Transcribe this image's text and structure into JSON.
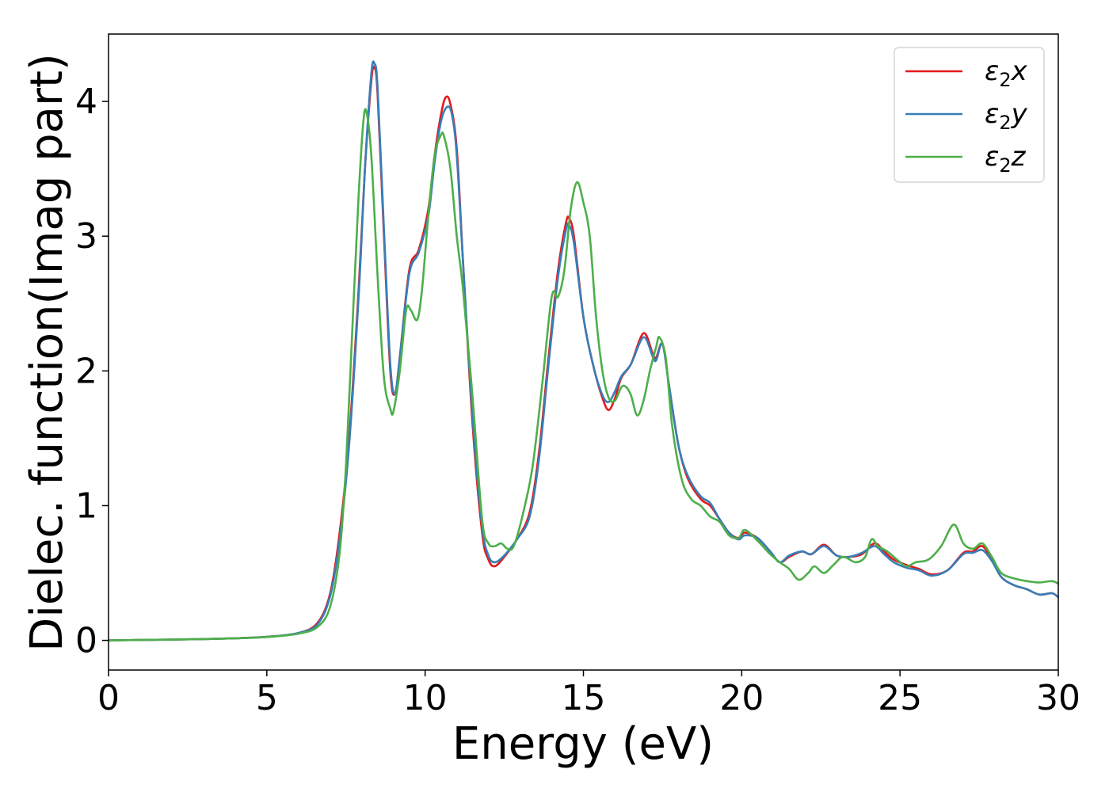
{
  "chart_data": {
    "type": "line",
    "xlabel": "Energy (eV)",
    "ylabel": "Dielec. function(Imag part)",
    "xlim": [
      0,
      30
    ],
    "ylim": [
      -0.22,
      4.5
    ],
    "xticks": [
      0,
      5,
      10,
      15,
      20,
      25,
      30
    ],
    "yticks": [
      0,
      1,
      2,
      3,
      4
    ],
    "grid": false,
    "legend_position": "top-right",
    "series": [
      {
        "name": "ε₂x",
        "legend_base": "ε",
        "legend_sub": "2",
        "legend_var": "x",
        "color": "#e41a1c",
        "points": [
          [
            0,
            0.0
          ],
          [
            1,
            0.003
          ],
          [
            2,
            0.006
          ],
          [
            3,
            0.01
          ],
          [
            4,
            0.016
          ],
          [
            5,
            0.026
          ],
          [
            6,
            0.055
          ],
          [
            6.6,
            0.13
          ],
          [
            7.0,
            0.35
          ],
          [
            7.3,
            0.8
          ],
          [
            7.6,
            1.5
          ],
          [
            7.9,
            2.6
          ],
          [
            8.1,
            3.5
          ],
          [
            8.3,
            4.15
          ],
          [
            8.4,
            4.25
          ],
          [
            8.5,
            4.05
          ],
          [
            8.7,
            3.0
          ],
          [
            8.9,
            2.0
          ],
          [
            9.05,
            1.83
          ],
          [
            9.2,
            2.1
          ],
          [
            9.5,
            2.75
          ],
          [
            9.8,
            2.9
          ],
          [
            10.1,
            3.2
          ],
          [
            10.3,
            3.6
          ],
          [
            10.5,
            3.9
          ],
          [
            10.65,
            4.03
          ],
          [
            10.8,
            3.98
          ],
          [
            11.0,
            3.65
          ],
          [
            11.2,
            2.8
          ],
          [
            11.5,
            1.6
          ],
          [
            11.8,
            0.8
          ],
          [
            12.0,
            0.6
          ],
          [
            12.2,
            0.55
          ],
          [
            12.5,
            0.62
          ],
          [
            12.9,
            0.75
          ],
          [
            13.3,
            0.95
          ],
          [
            13.6,
            1.4
          ],
          [
            13.9,
            2.1
          ],
          [
            14.2,
            2.75
          ],
          [
            14.45,
            3.1
          ],
          [
            14.55,
            3.13
          ],
          [
            14.7,
            3.0
          ],
          [
            15.0,
            2.4
          ],
          [
            15.3,
            2.05
          ],
          [
            15.6,
            1.8
          ],
          [
            15.8,
            1.71
          ],
          [
            16.0,
            1.8
          ],
          [
            16.2,
            1.95
          ],
          [
            16.5,
            2.05
          ],
          [
            16.9,
            2.28
          ],
          [
            17.2,
            2.12
          ],
          [
            17.3,
            2.1
          ],
          [
            17.5,
            2.2
          ],
          [
            17.7,
            1.9
          ],
          [
            18.0,
            1.45
          ],
          [
            18.3,
            1.2
          ],
          [
            18.7,
            1.05
          ],
          [
            19.0,
            1.0
          ],
          [
            19.3,
            0.9
          ],
          [
            19.6,
            0.8
          ],
          [
            19.9,
            0.76
          ],
          [
            20.1,
            0.8
          ],
          [
            20.5,
            0.76
          ],
          [
            20.9,
            0.66
          ],
          [
            21.2,
            0.58
          ],
          [
            21.5,
            0.62
          ],
          [
            21.9,
            0.66
          ],
          [
            22.2,
            0.64
          ],
          [
            22.6,
            0.71
          ],
          [
            23.0,
            0.63
          ],
          [
            23.4,
            0.62
          ],
          [
            23.8,
            0.64
          ],
          [
            24.2,
            0.72
          ],
          [
            24.5,
            0.66
          ],
          [
            24.8,
            0.6
          ],
          [
            25.2,
            0.56
          ],
          [
            25.6,
            0.53
          ],
          [
            26.0,
            0.49
          ],
          [
            26.5,
            0.52
          ],
          [
            27.0,
            0.65
          ],
          [
            27.3,
            0.66
          ],
          [
            27.6,
            0.7
          ],
          [
            27.9,
            0.6
          ],
          [
            28.2,
            0.47
          ],
          [
            28.6,
            0.41
          ],
          [
            29.0,
            0.38
          ],
          [
            29.4,
            0.34
          ],
          [
            29.8,
            0.35
          ],
          [
            30.0,
            0.32
          ]
        ]
      },
      {
        "name": "ε₂y",
        "legend_base": "ε",
        "legend_sub": "2",
        "legend_var": "y",
        "color": "#377eb8",
        "points": [
          [
            0,
            0.0
          ],
          [
            1,
            0.003
          ],
          [
            2,
            0.006
          ],
          [
            3,
            0.01
          ],
          [
            4,
            0.016
          ],
          [
            5,
            0.026
          ],
          [
            6,
            0.055
          ],
          [
            6.6,
            0.12
          ],
          [
            7.0,
            0.33
          ],
          [
            7.3,
            0.75
          ],
          [
            7.6,
            1.45
          ],
          [
            7.9,
            2.55
          ],
          [
            8.1,
            3.5
          ],
          [
            8.3,
            4.2
          ],
          [
            8.4,
            4.28
          ],
          [
            8.5,
            4.1
          ],
          [
            8.7,
            3.05
          ],
          [
            8.9,
            2.05
          ],
          [
            9.05,
            1.83
          ],
          [
            9.2,
            2.1
          ],
          [
            9.5,
            2.72
          ],
          [
            9.8,
            2.88
          ],
          [
            10.1,
            3.15
          ],
          [
            10.3,
            3.55
          ],
          [
            10.5,
            3.85
          ],
          [
            10.7,
            3.96
          ],
          [
            10.85,
            3.9
          ],
          [
            11.0,
            3.6
          ],
          [
            11.2,
            2.8
          ],
          [
            11.5,
            1.65
          ],
          [
            11.8,
            0.85
          ],
          [
            12.0,
            0.63
          ],
          [
            12.2,
            0.58
          ],
          [
            12.5,
            0.63
          ],
          [
            12.9,
            0.75
          ],
          [
            13.3,
            0.92
          ],
          [
            13.6,
            1.35
          ],
          [
            13.9,
            2.05
          ],
          [
            14.2,
            2.7
          ],
          [
            14.45,
            3.05
          ],
          [
            14.55,
            3.08
          ],
          [
            14.7,
            2.95
          ],
          [
            15.0,
            2.4
          ],
          [
            15.3,
            2.05
          ],
          [
            15.6,
            1.82
          ],
          [
            15.8,
            1.77
          ],
          [
            16.0,
            1.85
          ],
          [
            16.2,
            1.96
          ],
          [
            16.5,
            2.05
          ],
          [
            16.9,
            2.25
          ],
          [
            17.2,
            2.1
          ],
          [
            17.3,
            2.08
          ],
          [
            17.5,
            2.2
          ],
          [
            17.7,
            1.9
          ],
          [
            18.0,
            1.45
          ],
          [
            18.3,
            1.22
          ],
          [
            18.7,
            1.07
          ],
          [
            19.0,
            1.02
          ],
          [
            19.3,
            0.9
          ],
          [
            19.6,
            0.8
          ],
          [
            19.9,
            0.75
          ],
          [
            20.1,
            0.78
          ],
          [
            20.5,
            0.76
          ],
          [
            20.9,
            0.66
          ],
          [
            21.2,
            0.58
          ],
          [
            21.5,
            0.63
          ],
          [
            21.9,
            0.66
          ],
          [
            22.2,
            0.64
          ],
          [
            22.6,
            0.7
          ],
          [
            23.0,
            0.63
          ],
          [
            23.4,
            0.62
          ],
          [
            23.8,
            0.65
          ],
          [
            24.2,
            0.7
          ],
          [
            24.5,
            0.64
          ],
          [
            24.8,
            0.58
          ],
          [
            25.2,
            0.54
          ],
          [
            25.6,
            0.52
          ],
          [
            26.0,
            0.48
          ],
          [
            26.5,
            0.52
          ],
          [
            27.0,
            0.64
          ],
          [
            27.3,
            0.65
          ],
          [
            27.6,
            0.67
          ],
          [
            27.9,
            0.59
          ],
          [
            28.2,
            0.47
          ],
          [
            28.6,
            0.41
          ],
          [
            29.0,
            0.38
          ],
          [
            29.4,
            0.34
          ],
          [
            29.8,
            0.35
          ],
          [
            30.0,
            0.32
          ]
        ]
      },
      {
        "name": "ε₂z",
        "legend_base": "ε",
        "legend_sub": "2",
        "legend_var": "z",
        "color": "#4daf4a",
        "points": [
          [
            0,
            0.0
          ],
          [
            1,
            0.003
          ],
          [
            2,
            0.006
          ],
          [
            3,
            0.01
          ],
          [
            4,
            0.016
          ],
          [
            5,
            0.025
          ],
          [
            6,
            0.05
          ],
          [
            6.6,
            0.1
          ],
          [
            7.0,
            0.25
          ],
          [
            7.3,
            0.65
          ],
          [
            7.5,
            1.3
          ],
          [
            7.7,
            2.3
          ],
          [
            7.9,
            3.3
          ],
          [
            8.05,
            3.85
          ],
          [
            8.15,
            3.92
          ],
          [
            8.3,
            3.6
          ],
          [
            8.5,
            2.7
          ],
          [
            8.7,
            1.95
          ],
          [
            8.9,
            1.72
          ],
          [
            9.0,
            1.7
          ],
          [
            9.2,
            2.0
          ],
          [
            9.4,
            2.45
          ],
          [
            9.55,
            2.45
          ],
          [
            9.75,
            2.38
          ],
          [
            9.9,
            2.6
          ],
          [
            10.1,
            3.15
          ],
          [
            10.3,
            3.6
          ],
          [
            10.5,
            3.75
          ],
          [
            10.6,
            3.74
          ],
          [
            10.8,
            3.5
          ],
          [
            11.0,
            3.0
          ],
          [
            11.2,
            2.6
          ],
          [
            11.5,
            1.8
          ],
          [
            11.8,
            0.9
          ],
          [
            12.0,
            0.72
          ],
          [
            12.2,
            0.7
          ],
          [
            12.4,
            0.72
          ],
          [
            12.6,
            0.68
          ],
          [
            12.8,
            0.7
          ],
          [
            13.1,
            0.95
          ],
          [
            13.4,
            1.3
          ],
          [
            13.7,
            1.9
          ],
          [
            14.0,
            2.55
          ],
          [
            14.2,
            2.55
          ],
          [
            14.4,
            2.75
          ],
          [
            14.6,
            3.2
          ],
          [
            14.8,
            3.4
          ],
          [
            15.0,
            3.25
          ],
          [
            15.2,
            3.0
          ],
          [
            15.4,
            2.4
          ],
          [
            15.6,
            2.0
          ],
          [
            15.8,
            1.8
          ],
          [
            16.0,
            1.78
          ],
          [
            16.2,
            1.88
          ],
          [
            16.35,
            1.88
          ],
          [
            16.5,
            1.82
          ],
          [
            16.7,
            1.67
          ],
          [
            16.9,
            1.78
          ],
          [
            17.1,
            2.0
          ],
          [
            17.3,
            2.18
          ],
          [
            17.4,
            2.25
          ],
          [
            17.6,
            2.1
          ],
          [
            17.8,
            1.6
          ],
          [
            18.1,
            1.2
          ],
          [
            18.4,
            1.05
          ],
          [
            18.7,
            1.0
          ],
          [
            19.0,
            0.92
          ],
          [
            19.3,
            0.88
          ],
          [
            19.6,
            0.78
          ],
          [
            19.9,
            0.76
          ],
          [
            20.1,
            0.82
          ],
          [
            20.5,
            0.74
          ],
          [
            20.9,
            0.64
          ],
          [
            21.2,
            0.58
          ],
          [
            21.5,
            0.53
          ],
          [
            21.8,
            0.45
          ],
          [
            22.1,
            0.5
          ],
          [
            22.3,
            0.55
          ],
          [
            22.6,
            0.5
          ],
          [
            22.9,
            0.56
          ],
          [
            23.2,
            0.62
          ],
          [
            23.6,
            0.58
          ],
          [
            23.9,
            0.62
          ],
          [
            24.1,
            0.75
          ],
          [
            24.3,
            0.7
          ],
          [
            24.6,
            0.66
          ],
          [
            24.9,
            0.6
          ],
          [
            25.2,
            0.55
          ],
          [
            25.5,
            0.58
          ],
          [
            25.9,
            0.6
          ],
          [
            26.3,
            0.7
          ],
          [
            26.7,
            0.86
          ],
          [
            27.0,
            0.72
          ],
          [
            27.3,
            0.68
          ],
          [
            27.6,
            0.72
          ],
          [
            27.9,
            0.62
          ],
          [
            28.2,
            0.5
          ],
          [
            28.6,
            0.46
          ],
          [
            29.0,
            0.44
          ],
          [
            29.4,
            0.43
          ],
          [
            29.8,
            0.44
          ],
          [
            30.0,
            0.42
          ]
        ]
      }
    ]
  }
}
